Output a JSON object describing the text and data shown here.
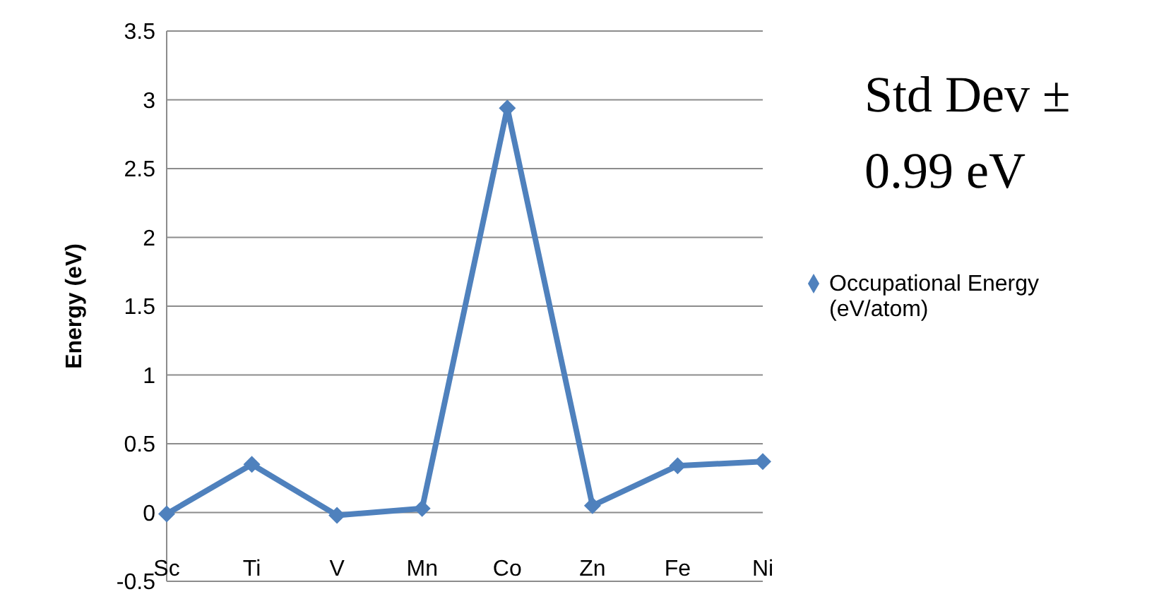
{
  "chart_data": {
    "type": "line",
    "ylabel": "Energy (eV)",
    "categories": [
      "Sc",
      "Ti",
      "V",
      "Mn",
      "Co",
      "Zn",
      "Fe",
      "Ni"
    ],
    "series": [
      {
        "name": "Occupational Energy (eV/atom)",
        "color": "#4f81bd",
        "values": [
          -0.01,
          0.35,
          -0.02,
          0.03,
          2.94,
          0.05,
          0.34,
          0.37
        ]
      }
    ],
    "ylim": [
      -0.5,
      3.5
    ],
    "yticks": [
      -0.5,
      0,
      0.5,
      1,
      1.5,
      2,
      2.5,
      3,
      3.5
    ],
    "grid": "y",
    "legend": "right",
    "marker": "diamond",
    "line_style": "solid",
    "annotations": [
      "Std Dev ± 0.99 eV"
    ]
  }
}
